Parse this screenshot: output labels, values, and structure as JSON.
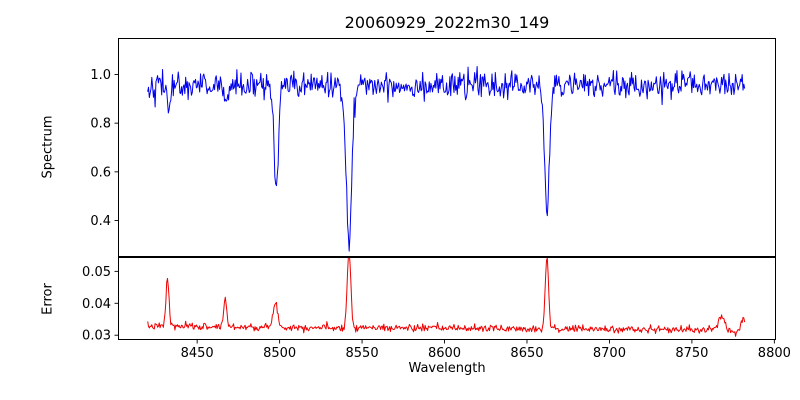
{
  "figure": {
    "background": "#ffffff",
    "frame_color": "#000000"
  },
  "chart_data": {
    "type": "line",
    "title": "20060929_2022m30_149",
    "xlabel": "Wavelength",
    "grid": false,
    "legend": null,
    "x_start": 8420,
    "x_end": 8782,
    "n_points": 724,
    "xlim": [
      8402,
      8801
    ],
    "xticks": [
      {
        "v": 8450,
        "label": "8450"
      },
      {
        "v": 8500,
        "label": "8500"
      },
      {
        "v": 8550,
        "label": "8550"
      },
      {
        "v": 8600,
        "label": "8600"
      },
      {
        "v": 8650,
        "label": "8650"
      },
      {
        "v": 8700,
        "label": "8700"
      },
      {
        "v": 8750,
        "label": "8750"
      },
      {
        "v": 8800,
        "label": "8800"
      }
    ],
    "panels": [
      {
        "name": "spectrum",
        "ylabel": "Spectrum",
        "color": "#0000ee",
        "ylim": [
          0.25,
          1.15
        ],
        "yticks": [
          {
            "v": 1.0,
            "label": "1.0"
          },
          {
            "v": 0.8,
            "label": "0.8"
          },
          {
            "v": 0.6,
            "label": "0.6"
          },
          {
            "v": 0.4,
            "label": "0.4"
          }
        ],
        "baseline": 0.955,
        "trend": 0,
        "noise_sigma": 0.027,
        "seed": 42,
        "features": [
          {
            "center": 8498.0,
            "amplitude": -0.44,
            "sigma": 1.3,
            "note": "Ca II 8498 absorption, depth to ~0.52"
          },
          {
            "center": 8542.1,
            "amplitude": -0.62,
            "sigma": 1.7,
            "note": "Ca II 8542 absorption, depth to ~0.34"
          },
          {
            "center": 8662.1,
            "amplitude": -0.54,
            "sigma": 1.4,
            "note": "Ca II 8662 absorption, depth to ~0.42"
          },
          {
            "center": 8433.0,
            "amplitude": -0.09,
            "sigma": 1.0,
            "note": "minor absorption"
          },
          {
            "center": 8468.0,
            "amplitude": -0.08,
            "sigma": 1.0,
            "note": "minor absorption"
          }
        ]
      },
      {
        "name": "error",
        "ylabel": "Error",
        "color": "#ee0000",
        "ylim": [
          0.0285,
          0.0545
        ],
        "yticks": [
          {
            "v": 0.05,
            "label": "0.05"
          },
          {
            "v": 0.04,
            "label": "0.04"
          },
          {
            "v": 0.03,
            "label": "0.03"
          }
        ],
        "baseline": 0.0328,
        "trend": -0.0012,
        "noise_sigma": 0.00055,
        "seed": 7,
        "features": [
          {
            "center": 8432.0,
            "amplitude": 0.0152,
            "sigma": 0.9,
            "note": "error peak to ~0.048"
          },
          {
            "center": 8467.0,
            "amplitude": 0.009,
            "sigma": 0.9,
            "note": "error peak to ~0.042"
          },
          {
            "center": 8497.5,
            "amplitude": 0.0085,
            "sigma": 1.2,
            "note": "error peak to ~0.042"
          },
          {
            "center": 8542.1,
            "amplitude": 0.0235,
            "sigma": 1.1,
            "note": "error peak to ~0.055"
          },
          {
            "center": 8662.1,
            "amplitude": 0.0228,
            "sigma": 1.0,
            "note": "error peak to ~0.055"
          },
          {
            "center": 8768.0,
            "amplitude": 0.0045,
            "sigma": 1.6,
            "note": "small bump"
          },
          {
            "center": 8781.0,
            "amplitude": 0.0035,
            "sigma": 1.2,
            "note": "small bump"
          }
        ]
      }
    ]
  }
}
